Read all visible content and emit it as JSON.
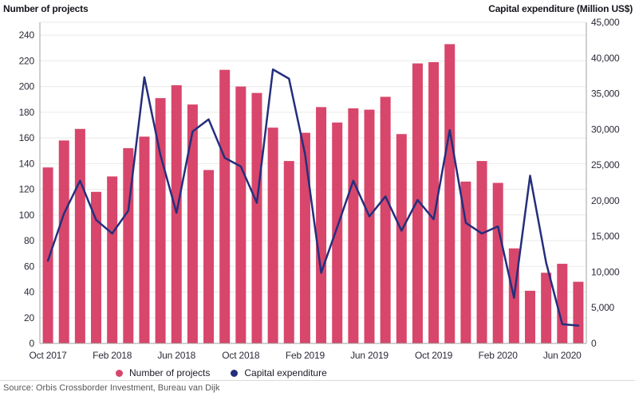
{
  "titles": {
    "left": "Number of projects",
    "right": "Capital expenditure (Million US$)"
  },
  "legend": [
    {
      "label": "Number of projects",
      "color": "#d8466b"
    },
    {
      "label": "Capital expenditure",
      "color": "#252e7d"
    }
  ],
  "source": "Source: Orbis Crossborder Investment, Bureau van Dijk",
  "colors": {
    "bar": "#d8466b",
    "line": "#252e7d",
    "grid": "#e9e9e9",
    "axis": "#a0a0a0",
    "tick_text": "#2b2b38"
  },
  "chart_data": {
    "type": "bar",
    "title": "",
    "x": [
      "Oct 2017",
      "Nov 2017",
      "Dec 2017",
      "Jan 2018",
      "Feb 2018",
      "Mar 2018",
      "Apr 2018",
      "May 2018",
      "Jun 2018",
      "Jul 2018",
      "Aug 2018",
      "Sep 2018",
      "Oct 2018",
      "Nov 2018",
      "Dec 2018",
      "Jan 2019",
      "Feb 2019",
      "Mar 2019",
      "Apr 2019",
      "May 2019",
      "Jun 2019",
      "Jul 2019",
      "Aug 2019",
      "Sep 2019",
      "Oct 2019",
      "Nov 2019",
      "Dec 2019",
      "Jan 2020",
      "Feb 2020",
      "Mar 2020",
      "Apr 2020",
      "May 2020",
      "Jun 2020",
      "Jul 2020"
    ],
    "x_tick_indices": [
      0,
      4,
      8,
      12,
      16,
      20,
      24,
      28,
      32
    ],
    "x_tick_labels": [
      "Oct 2017",
      "Feb 2018",
      "Jun 2018",
      "Oct 2018",
      "Feb 2019",
      "Jun 2019",
      "Oct 2019",
      "Feb 2020",
      "Jun 2020"
    ],
    "series": [
      {
        "name": "Number of projects",
        "type": "bar",
        "axis": "left",
        "values": [
          137,
          158,
          167,
          118,
          130,
          152,
          161,
          191,
          201,
          186,
          135,
          213,
          200,
          195,
          168,
          142,
          164,
          184,
          172,
          183,
          182,
          192,
          163,
          218,
          219,
          233,
          126,
          142,
          125,
          74,
          41,
          55,
          62,
          48
        ]
      },
      {
        "name": "Capital expenditure",
        "type": "line",
        "axis": "right",
        "values": [
          11600,
          18200,
          22800,
          17300,
          15400,
          18600,
          37300,
          26400,
          18300,
          29700,
          31400,
          26000,
          24800,
          19700,
          38400,
          37100,
          26500,
          9900,
          16300,
          22800,
          17800,
          20600,
          15800,
          20100,
          17400,
          29900,
          16900,
          15400,
          16400,
          6400,
          23500,
          11300,
          2700,
          2500
        ]
      }
    ],
    "left_axis": {
      "label": "Number of projects",
      "ticks": [
        0,
        20,
        40,
        60,
        80,
        100,
        120,
        140,
        160,
        180,
        200,
        220,
        240
      ],
      "tick_labels": [
        "0",
        "20",
        "40",
        "60",
        "80",
        "100",
        "120",
        "140",
        "160",
        "180",
        "200",
        "220",
        "240"
      ],
      "range": [
        0,
        250
      ]
    },
    "right_axis": {
      "label": "Capital expenditure (Million US$)",
      "ticks": [
        0,
        5000,
        10000,
        15000,
        20000,
        25000,
        30000,
        35000,
        40000,
        45000
      ],
      "tick_labels": [
        "0",
        "5,000",
        "10,000",
        "15,000",
        "20,000",
        "25,000",
        "30,000",
        "35,000",
        "40,000",
        "45,000"
      ],
      "range": [
        0,
        45000
      ]
    },
    "grid": true,
    "legend_position": "bottom-left"
  }
}
